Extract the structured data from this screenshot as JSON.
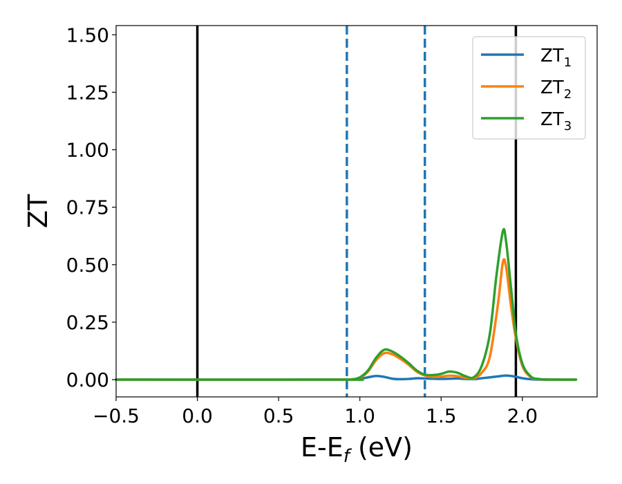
{
  "chart_data": {
    "type": "line",
    "xlabel": {
      "main": "E-E",
      "sub": "f",
      "suffix": " (eV)"
    },
    "ylabel": "ZT",
    "xlim": [
      -0.5,
      2.46
    ],
    "ylim": [
      -0.075,
      1.54
    ],
    "xticks": [
      {
        "value": -0.5,
        "label": "−0.5"
      },
      {
        "value": 0.0,
        "label": "0.0"
      },
      {
        "value": 0.5,
        "label": "0.5"
      },
      {
        "value": 1.0,
        "label": "1.0"
      },
      {
        "value": 1.5,
        "label": "1.5"
      },
      {
        "value": 2.0,
        "label": "2.0"
      }
    ],
    "yticks": [
      {
        "value": 0.0,
        "label": "0.00"
      },
      {
        "value": 0.25,
        "label": "0.25"
      },
      {
        "value": 0.5,
        "label": "0.50"
      },
      {
        "value": 0.75,
        "label": "0.75"
      },
      {
        "value": 1.0,
        "label": "1.00"
      },
      {
        "value": 1.25,
        "label": "1.25"
      },
      {
        "value": 1.5,
        "label": "1.50"
      }
    ],
    "grid": false,
    "legend_position": "top-right",
    "vlines": [
      {
        "x": 0.0,
        "color": "#000000",
        "style": "solid"
      },
      {
        "x": 1.96,
        "color": "#000000",
        "style": "solid"
      },
      {
        "x": 0.92,
        "color": "#1f77b4",
        "style": "dashed"
      },
      {
        "x": 1.4,
        "color": "#1f77b4",
        "style": "dashed"
      }
    ],
    "series": [
      {
        "name": "ZT",
        "sub": "1",
        "color": "#1f77b4",
        "x": [
          -0.5,
          0.9,
          0.95,
          1.0,
          1.05,
          1.1,
          1.15,
          1.2,
          1.25,
          1.3,
          1.35,
          1.4,
          1.45,
          1.5,
          1.55,
          1.6,
          1.65,
          1.7,
          1.75,
          1.8,
          1.85,
          1.9,
          1.95,
          2.0,
          2.05,
          2.1,
          2.2,
          2.33
        ],
        "y": [
          0.0,
          0.0,
          0.0,
          0.003,
          0.01,
          0.016,
          0.012,
          0.004,
          0.002,
          0.003,
          0.006,
          0.005,
          0.004,
          0.003,
          0.004,
          0.005,
          0.003,
          0.002,
          0.006,
          0.01,
          0.014,
          0.018,
          0.014,
          0.006,
          0.002,
          0.0,
          0.0,
          0.0
        ]
      },
      {
        "name": "ZT",
        "sub": "2",
        "color": "#ff7f0e",
        "x": [
          -0.5,
          0.9,
          0.95,
          1.0,
          1.05,
          1.1,
          1.15,
          1.2,
          1.25,
          1.3,
          1.35,
          1.4,
          1.45,
          1.5,
          1.55,
          1.6,
          1.65,
          1.7,
          1.75,
          1.8,
          1.85,
          1.88,
          1.9,
          1.93,
          1.96,
          2.0,
          2.05,
          2.1,
          2.2,
          2.33
        ],
        "y": [
          0.0,
          0.0,
          0.001,
          0.008,
          0.035,
          0.085,
          0.115,
          0.11,
          0.09,
          0.065,
          0.035,
          0.018,
          0.012,
          0.013,
          0.017,
          0.015,
          0.008,
          0.005,
          0.03,
          0.1,
          0.33,
          0.51,
          0.49,
          0.32,
          0.18,
          0.06,
          0.012,
          0.002,
          0.0,
          0.0
        ]
      },
      {
        "name": "ZT",
        "sub": "3",
        "color": "#2ca02c",
        "x": [
          -0.5,
          0.9,
          0.95,
          1.0,
          1.05,
          1.1,
          1.15,
          1.2,
          1.25,
          1.3,
          1.35,
          1.4,
          1.45,
          1.5,
          1.55,
          1.6,
          1.65,
          1.7,
          1.75,
          1.8,
          1.84,
          1.88,
          1.9,
          1.93,
          1.96,
          2.0,
          2.05,
          2.1,
          2.2,
          2.33
        ],
        "y": [
          0.0,
          0.0,
          0.001,
          0.01,
          0.04,
          0.095,
          0.13,
          0.122,
          0.1,
          0.072,
          0.04,
          0.022,
          0.02,
          0.025,
          0.035,
          0.03,
          0.015,
          0.01,
          0.06,
          0.2,
          0.45,
          0.645,
          0.6,
          0.4,
          0.2,
          0.07,
          0.015,
          0.003,
          0.0,
          0.0
        ]
      }
    ]
  }
}
